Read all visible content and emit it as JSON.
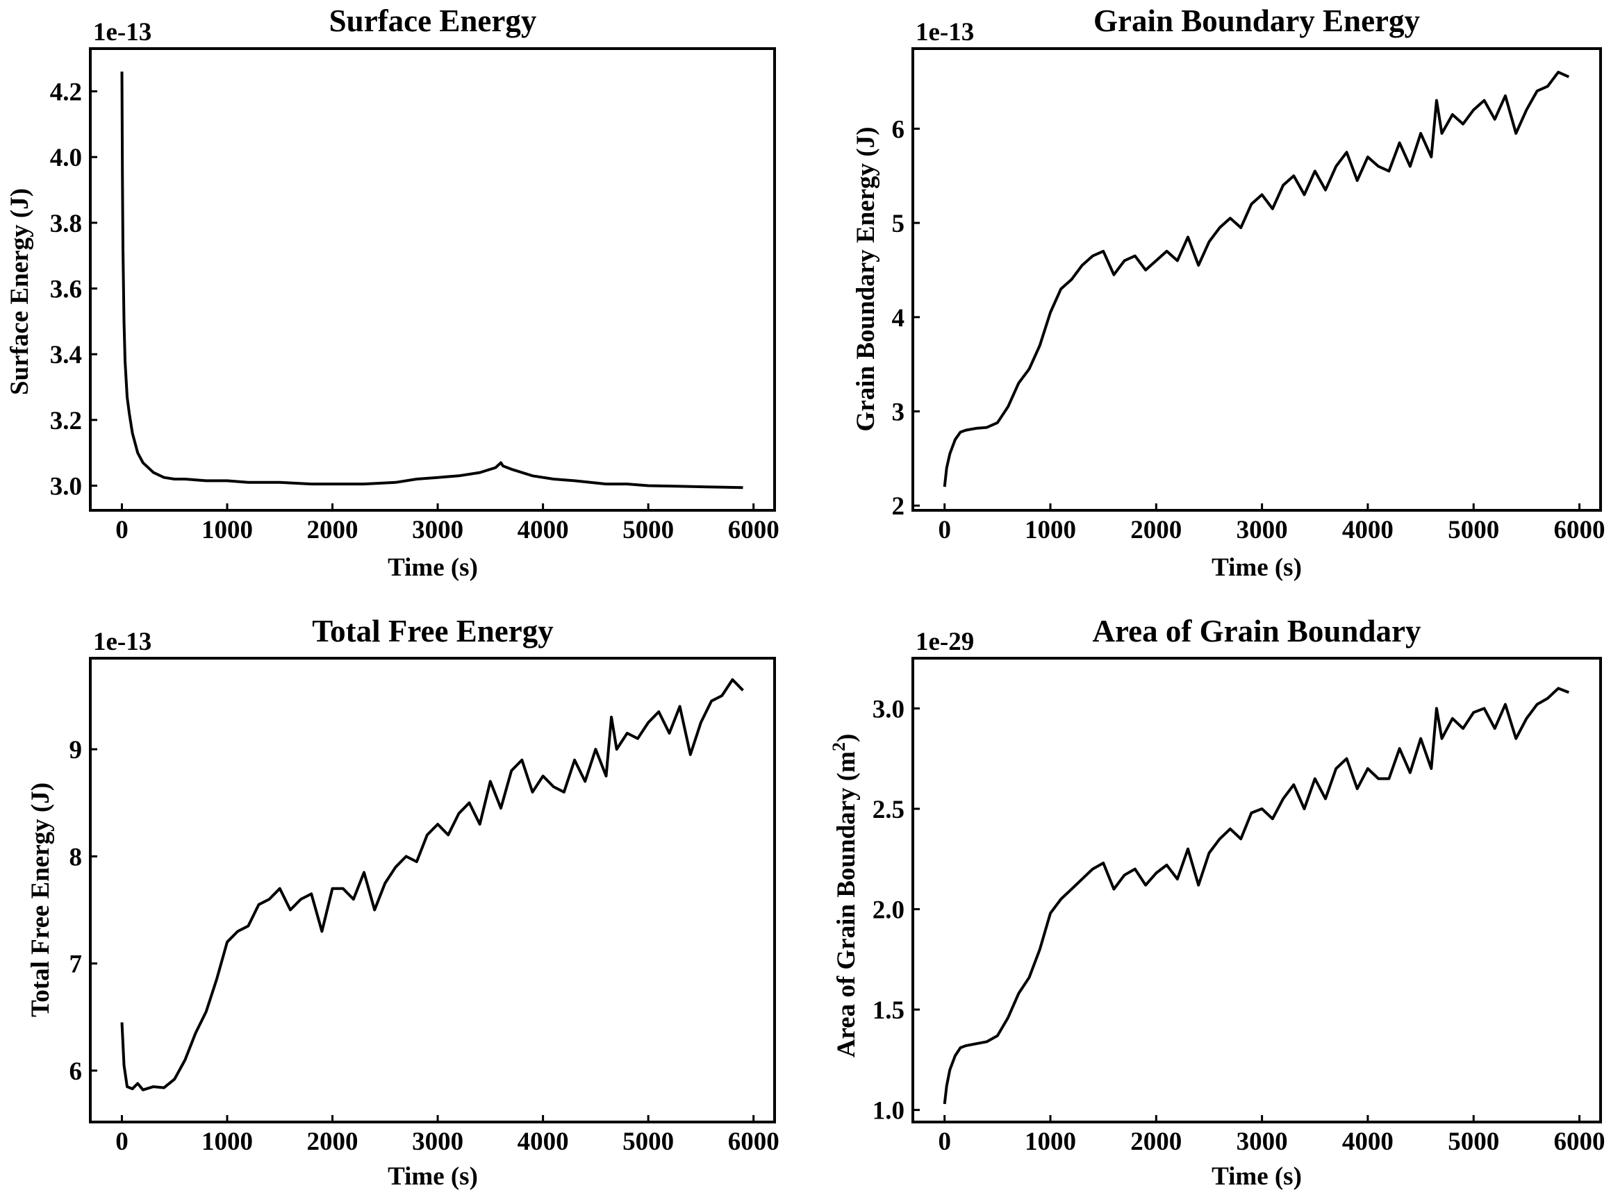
{
  "figure": {
    "line_color": "#000000",
    "background": "#ffffff"
  },
  "chart_data": [
    {
      "type": "line",
      "title": "Surface Energy",
      "xlabel": "Time (s)",
      "ylabel": "Surface Energy (J)",
      "offset_label": "1e-13",
      "xlim": [
        -300,
        6200
      ],
      "ylim": [
        2.925,
        4.33
      ],
      "xticks": [
        0,
        1000,
        2000,
        3000,
        4000,
        5000,
        6000
      ],
      "yticks": [
        3.0,
        3.2,
        3.4,
        3.6,
        3.8,
        4.0,
        4.2
      ],
      "ytick_labels": [
        "3.0",
        "3.2",
        "3.4",
        "3.6",
        "3.8",
        "4.0",
        "4.2"
      ],
      "series": [
        {
          "x": [
            0,
            5,
            10,
            20,
            30,
            50,
            70,
            100,
            150,
            200,
            300,
            400,
            500,
            600,
            800,
            1000,
            1200,
            1500,
            1800,
            2000,
            2300,
            2600,
            2800,
            3000,
            3200,
            3400,
            3550,
            3600,
            3620,
            3700,
            3900,
            4100,
            4300,
            4450,
            4600,
            4800,
            5000,
            5300,
            5600,
            5900
          ],
          "y": [
            4.26,
            3.95,
            3.72,
            3.5,
            3.38,
            3.27,
            3.22,
            3.16,
            3.1,
            3.07,
            3.04,
            3.025,
            3.02,
            3.02,
            3.015,
            3.015,
            3.01,
            3.01,
            3.005,
            3.005,
            3.005,
            3.01,
            3.02,
            3.025,
            3.03,
            3.04,
            3.055,
            3.07,
            3.06,
            3.05,
            3.03,
            3.02,
            3.015,
            3.01,
            3.005,
            3.005,
            3.0,
            2.998,
            2.996,
            2.994
          ]
        }
      ]
    },
    {
      "type": "line",
      "title": "Grain Boundary Energy",
      "xlabel": "Time (s)",
      "ylabel": "Grain Boundary Energy (J)",
      "offset_label": "1e-13",
      "xlim": [
        -300,
        6200
      ],
      "ylim": [
        1.95,
        6.85
      ],
      "xticks": [
        0,
        1000,
        2000,
        3000,
        4000,
        5000,
        6000
      ],
      "yticks": [
        2,
        3,
        4,
        5,
        6
      ],
      "ytick_labels": [
        "2",
        "3",
        "4",
        "5",
        "6"
      ],
      "series": [
        {
          "x": [
            0,
            20,
            50,
            100,
            150,
            200,
            300,
            400,
            500,
            600,
            700,
            800,
            900,
            1000,
            1100,
            1200,
            1300,
            1400,
            1500,
            1600,
            1700,
            1800,
            1900,
            2000,
            2100,
            2200,
            2300,
            2400,
            2500,
            2600,
            2700,
            2800,
            2900,
            3000,
            3100,
            3200,
            3300,
            3400,
            3500,
            3600,
            3700,
            3800,
            3900,
            4000,
            4100,
            4200,
            4300,
            4400,
            4500,
            4600,
            4650,
            4700,
            4800,
            4900,
            5000,
            5100,
            5200,
            5300,
            5400,
            5500,
            5600,
            5700,
            5800,
            5900
          ],
          "y": [
            2.2,
            2.4,
            2.55,
            2.7,
            2.78,
            2.8,
            2.82,
            2.83,
            2.88,
            3.05,
            3.3,
            3.45,
            3.7,
            4.05,
            4.3,
            4.4,
            4.55,
            4.65,
            4.7,
            4.45,
            4.6,
            4.65,
            4.5,
            4.6,
            4.7,
            4.6,
            4.85,
            4.55,
            4.8,
            4.95,
            5.05,
            4.95,
            5.2,
            5.3,
            5.15,
            5.4,
            5.5,
            5.3,
            5.55,
            5.35,
            5.6,
            5.75,
            5.45,
            5.7,
            5.6,
            5.55,
            5.85,
            5.6,
            5.95,
            5.7,
            6.3,
            5.95,
            6.15,
            6.05,
            6.2,
            6.3,
            6.1,
            6.35,
            5.95,
            6.2,
            6.4,
            6.45,
            6.6,
            6.55
          ]
        }
      ]
    },
    {
      "type": "line",
      "title": "Total Free Energy",
      "xlabel": "Time (s)",
      "ylabel": "Total Free Energy (J)",
      "offset_label": "1e-13",
      "xlim": [
        -300,
        6200
      ],
      "ylim": [
        5.52,
        9.85
      ],
      "xticks": [
        0,
        1000,
        2000,
        3000,
        4000,
        5000,
        6000
      ],
      "yticks": [
        6,
        7,
        8,
        9
      ],
      "ytick_labels": [
        "6",
        "7",
        "8",
        "9"
      ],
      "series": [
        {
          "x": [
            0,
            20,
            50,
            100,
            150,
            200,
            300,
            400,
            500,
            600,
            700,
            800,
            900,
            1000,
            1100,
            1200,
            1300,
            1400,
            1500,
            1600,
            1700,
            1800,
            1900,
            2000,
            2100,
            2200,
            2300,
            2400,
            2500,
            2600,
            2700,
            2800,
            2900,
            3000,
            3100,
            3200,
            3300,
            3400,
            3500,
            3600,
            3700,
            3800,
            3900,
            4000,
            4100,
            4200,
            4300,
            4400,
            4500,
            4600,
            4650,
            4700,
            4800,
            4900,
            5000,
            5100,
            5200,
            5300,
            5400,
            5500,
            5600,
            5700,
            5800,
            5900
          ],
          "y": [
            6.45,
            6.05,
            5.85,
            5.83,
            5.88,
            5.82,
            5.85,
            5.84,
            5.92,
            6.1,
            6.35,
            6.55,
            6.85,
            7.2,
            7.3,
            7.35,
            7.55,
            7.6,
            7.7,
            7.5,
            7.6,
            7.65,
            7.3,
            7.7,
            7.7,
            7.6,
            7.85,
            7.5,
            7.75,
            7.9,
            8.0,
            7.95,
            8.2,
            8.3,
            8.2,
            8.4,
            8.5,
            8.3,
            8.7,
            8.45,
            8.8,
            8.9,
            8.6,
            8.75,
            8.65,
            8.6,
            8.9,
            8.7,
            9.0,
            8.75,
            9.3,
            9.0,
            9.15,
            9.1,
            9.25,
            9.35,
            9.15,
            9.4,
            8.95,
            9.25,
            9.45,
            9.5,
            9.65,
            9.55
          ]
        }
      ]
    },
    {
      "type": "line",
      "title": "Area of Grain Boundary",
      "xlabel": "Time (s)",
      "ylabel": "Area of Grain Boundary (m",
      "ylabel_superscript": "2",
      "ylabel_suffix": ")",
      "offset_label": "1e-29",
      "xlim": [
        -300,
        6200
      ],
      "ylim": [
        0.94,
        3.25
      ],
      "xticks": [
        0,
        1000,
        2000,
        3000,
        4000,
        5000,
        6000
      ],
      "yticks": [
        1.0,
        1.5,
        2.0,
        2.5,
        3.0
      ],
      "ytick_labels": [
        "1.0",
        "1.5",
        "2.0",
        "2.5",
        "3.0"
      ],
      "series": [
        {
          "x": [
            0,
            20,
            50,
            100,
            150,
            200,
            300,
            400,
            500,
            600,
            700,
            800,
            900,
            1000,
            1100,
            1200,
            1300,
            1400,
            1500,
            1600,
            1700,
            1800,
            1900,
            2000,
            2100,
            2200,
            2300,
            2400,
            2500,
            2600,
            2700,
            2800,
            2900,
            3000,
            3100,
            3200,
            3300,
            3400,
            3500,
            3600,
            3700,
            3800,
            3900,
            4000,
            4100,
            4200,
            4300,
            4400,
            4500,
            4600,
            4650,
            4700,
            4800,
            4900,
            5000,
            5100,
            5200,
            5300,
            5400,
            5500,
            5600,
            5700,
            5800,
            5900
          ],
          "y": [
            1.03,
            1.12,
            1.2,
            1.27,
            1.31,
            1.32,
            1.33,
            1.34,
            1.37,
            1.46,
            1.58,
            1.66,
            1.8,
            1.98,
            2.05,
            2.1,
            2.15,
            2.2,
            2.23,
            2.1,
            2.17,
            2.2,
            2.12,
            2.18,
            2.22,
            2.15,
            2.3,
            2.12,
            2.28,
            2.35,
            2.4,
            2.35,
            2.48,
            2.5,
            2.45,
            2.55,
            2.62,
            2.5,
            2.65,
            2.55,
            2.7,
            2.75,
            2.6,
            2.7,
            2.65,
            2.65,
            2.8,
            2.68,
            2.85,
            2.7,
            3.0,
            2.85,
            2.95,
            2.9,
            2.98,
            3.0,
            2.9,
            3.02,
            2.85,
            2.95,
            3.02,
            3.05,
            3.1,
            3.08
          ]
        }
      ]
    }
  ]
}
